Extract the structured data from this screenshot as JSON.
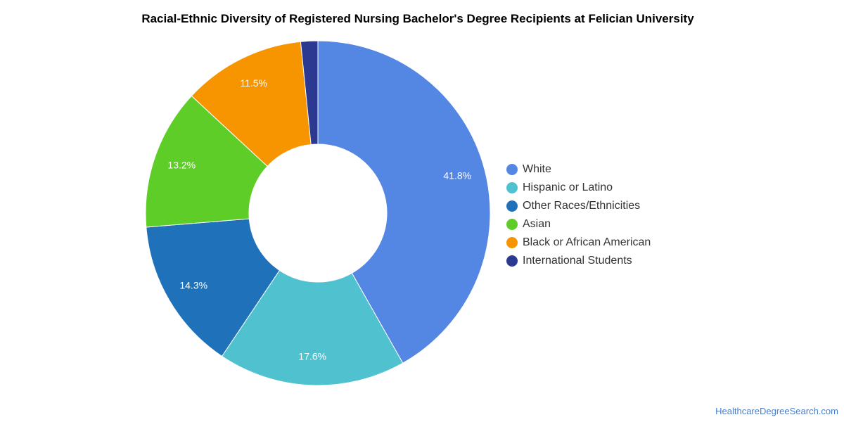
{
  "chart_data": {
    "type": "pie",
    "title": "Racial-Ethnic Diversity of Registered Nursing Bachelor's Degree Recipients at Felician University",
    "donut": true,
    "legend_position": "right",
    "slices": [
      {
        "label": "White",
        "value": 41.8,
        "display": "41.8%",
        "color": "#5486e3"
      },
      {
        "label": "Hispanic or Latino",
        "value": 17.6,
        "display": "17.6%",
        "color": "#4fc1cf"
      },
      {
        "label": "Other Races/Ethnicities",
        "value": 14.3,
        "display": "14.3%",
        "color": "#1f72b9"
      },
      {
        "label": "Asian",
        "value": 13.2,
        "display": "13.2%",
        "color": "#5fcd28"
      },
      {
        "label": "Black or African American",
        "value": 11.5,
        "display": "11.5%",
        "color": "#f79500"
      },
      {
        "label": "International Students",
        "value": 1.6,
        "display": "",
        "color": "#2b3990"
      }
    ]
  },
  "source": "HealthcareDegreeSearch.com"
}
